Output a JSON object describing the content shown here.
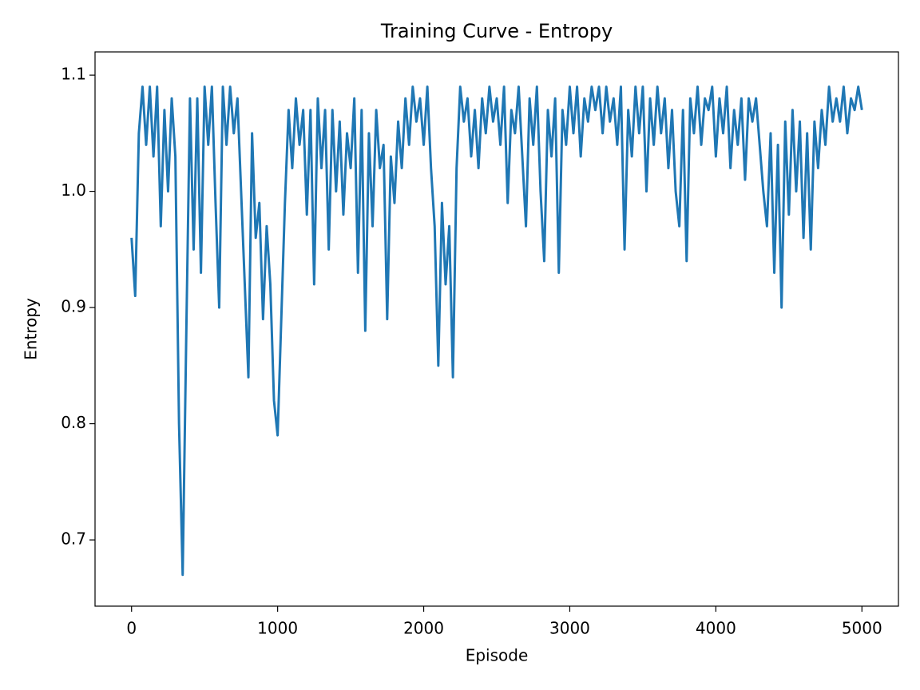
{
  "chart_data": {
    "type": "line",
    "title": "Training Curve - Entropy",
    "x_label": "Episode",
    "y_label": "Entropy",
    "color": "#1f77b4",
    "xlim": [
      -250,
      5250
    ],
    "ylim": [
      0.643,
      1.12
    ],
    "xticks": [
      0,
      1000,
      2000,
      3000,
      4000,
      5000
    ],
    "yticks": [
      0.7,
      0.8,
      0.9,
      {
        "value": 1,
        "label": "1.0"
      },
      1.1
    ],
    "x": [
      0,
      25,
      50,
      75,
      100,
      125,
      150,
      175,
      200,
      225,
      250,
      275,
      300,
      325,
      350,
      375,
      400,
      425,
      450,
      475,
      500,
      525,
      550,
      575,
      600,
      625,
      650,
      675,
      700,
      725,
      750,
      775,
      800,
      825,
      850,
      875,
      900,
      925,
      950,
      975,
      1000,
      1025,
      1050,
      1075,
      1100,
      1125,
      1150,
      1175,
      1200,
      1225,
      1250,
      1275,
      1300,
      1325,
      1350,
      1375,
      1400,
      1425,
      1450,
      1475,
      1500,
      1525,
      1550,
      1575,
      1600,
      1625,
      1650,
      1675,
      1700,
      1725,
      1750,
      1775,
      1800,
      1825,
      1850,
      1875,
      1900,
      1925,
      1950,
      1975,
      2000,
      2025,
      2050,
      2075,
      2100,
      2125,
      2150,
      2175,
      2200,
      2225,
      2250,
      2275,
      2300,
      2325,
      2350,
      2375,
      2400,
      2425,
      2450,
      2475,
      2500,
      2525,
      2550,
      2575,
      2600,
      2625,
      2650,
      2675,
      2700,
      2725,
      2750,
      2775,
      2800,
      2825,
      2850,
      2875,
      2900,
      2925,
      2950,
      2975,
      3000,
      3025,
      3050,
      3075,
      3100,
      3125,
      3150,
      3175,
      3200,
      3225,
      3250,
      3275,
      3300,
      3325,
      3350,
      3375,
      3400,
      3425,
      3450,
      3475,
      3500,
      3525,
      3550,
      3575,
      3600,
      3625,
      3650,
      3675,
      3700,
      3725,
      3750,
      3775,
      3800,
      3825,
      3850,
      3875,
      3900,
      3925,
      3950,
      3975,
      4000,
      4025,
      4050,
      4075,
      4100,
      4125,
      4150,
      4175,
      4200,
      4225,
      4250,
      4275,
      4300,
      4325,
      4350,
      4375,
      4400,
      4425,
      4450,
      4475,
      4500,
      4525,
      4550,
      4575,
      4600,
      4625,
      4650,
      4675,
      4700,
      4725,
      4750,
      4775,
      4800,
      4825,
      4850,
      4875,
      4900,
      4925,
      4950,
      4975,
      5000
    ],
    "values": [
      0.96,
      0.91,
      1.05,
      1.09,
      1.04,
      1.09,
      1.03,
      1.09,
      0.97,
      1.07,
      1.0,
      1.08,
      1.03,
      0.8,
      0.67,
      0.88,
      1.08,
      0.95,
      1.08,
      0.93,
      1.09,
      1.04,
      1.09,
      0.99,
      0.9,
      1.09,
      1.04,
      1.09,
      1.05,
      1.08,
      1.0,
      0.92,
      0.84,
      1.05,
      0.96,
      0.99,
      0.89,
      0.97,
      0.92,
      0.82,
      0.79,
      0.89,
      0.99,
      1.07,
      1.02,
      1.08,
      1.04,
      1.07,
      0.98,
      1.07,
      0.92,
      1.08,
      1.02,
      1.07,
      0.95,
      1.07,
      1.0,
      1.06,
      0.98,
      1.05,
      1.02,
      1.08,
      0.93,
      1.07,
      0.88,
      1.05,
      0.97,
      1.07,
      1.02,
      1.04,
      0.89,
      1.03,
      0.99,
      1.06,
      1.02,
      1.08,
      1.04,
      1.09,
      1.06,
      1.08,
      1.04,
      1.09,
      1.02,
      0.97,
      0.85,
      0.99,
      0.92,
      0.97,
      0.84,
      1.02,
      1.09,
      1.06,
      1.08,
      1.03,
      1.07,
      1.02,
      1.08,
      1.05,
      1.09,
      1.06,
      1.08,
      1.04,
      1.09,
      0.99,
      1.07,
      1.05,
      1.09,
      1.03,
      0.97,
      1.08,
      1.04,
      1.09,
      1.0,
      0.94,
      1.07,
      1.03,
      1.08,
      0.93,
      1.07,
      1.04,
      1.09,
      1.05,
      1.09,
      1.03,
      1.08,
      1.06,
      1.09,
      1.07,
      1.09,
      1.05,
      1.09,
      1.06,
      1.08,
      1.04,
      1.09,
      0.95,
      1.07,
      1.03,
      1.09,
      1.05,
      1.09,
      1.0,
      1.08,
      1.04,
      1.09,
      1.05,
      1.08,
      1.02,
      1.07,
      1.0,
      0.97,
      1.07,
      0.94,
      1.08,
      1.05,
      1.09,
      1.04,
      1.08,
      1.07,
      1.09,
      1.03,
      1.08,
      1.05,
      1.09,
      1.02,
      1.07,
      1.04,
      1.08,
      1.01,
      1.08,
      1.06,
      1.08,
      1.04,
      1.0,
      0.97,
      1.05,
      0.93,
      1.04,
      0.9,
      1.06,
      0.98,
      1.07,
      1.0,
      1.06,
      0.96,
      1.05,
      0.95,
      1.06,
      1.02,
      1.07,
      1.04,
      1.09,
      1.06,
      1.08,
      1.06,
      1.09,
      1.05,
      1.08,
      1.07,
      1.09,
      1.07
    ]
  }
}
